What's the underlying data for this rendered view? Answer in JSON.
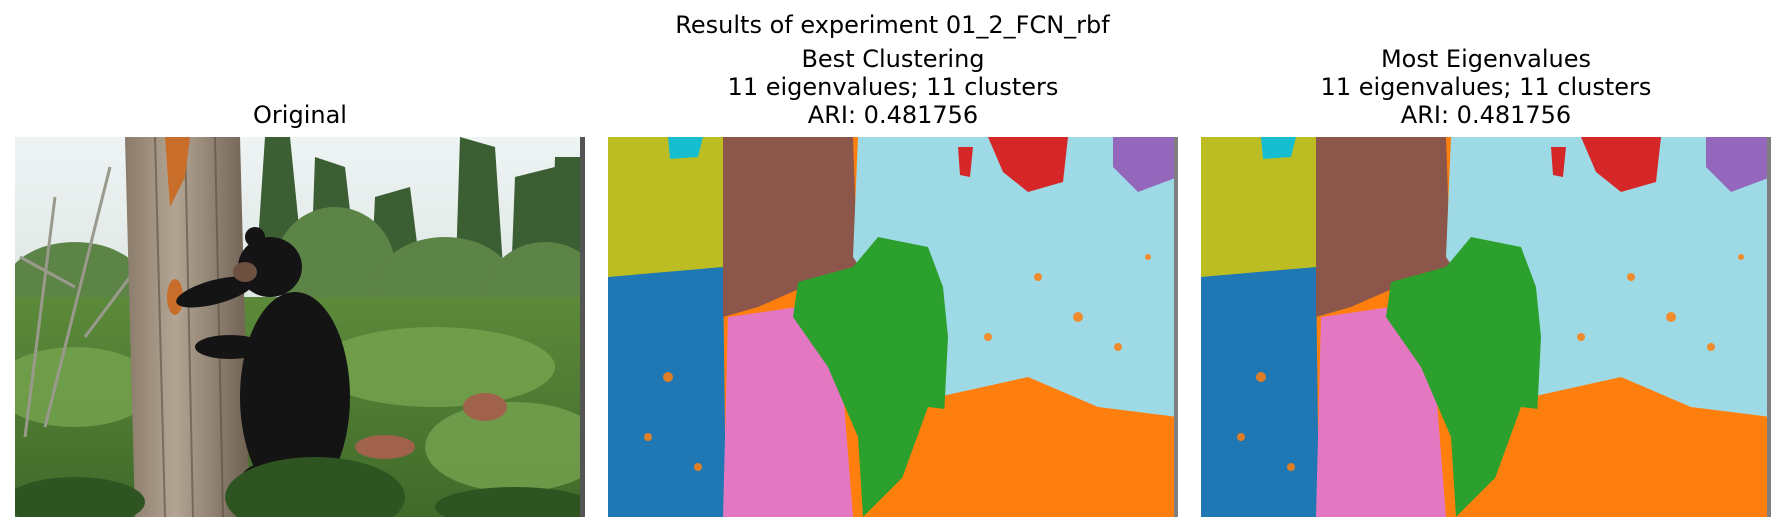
{
  "figure": {
    "suptitle": "Results of experiment 01_2_FCN_rbf"
  },
  "panels": [
    {
      "title_lines": [
        "Original"
      ]
    },
    {
      "title_lines": [
        "Best Clustering",
        "11 eigenvalues; 11 clusters",
        "ARI: 0.481756"
      ]
    },
    {
      "title_lines": [
        "Most Eigenvalues",
        "11 eigenvalues; 11 clusters",
        "ARI: 0.481756"
      ]
    }
  ],
  "colors": {
    "blue": "#1f77b4",
    "orange": "#ff7f0e",
    "green": "#2ca02c",
    "red": "#d62728",
    "purple": "#9467bd",
    "brown": "#8c564b",
    "pink": "#e377c2",
    "olive": "#bcbd22",
    "cyan": "#17becf",
    "lightblue": "#9edae5",
    "gray": "#7f7f7f"
  }
}
